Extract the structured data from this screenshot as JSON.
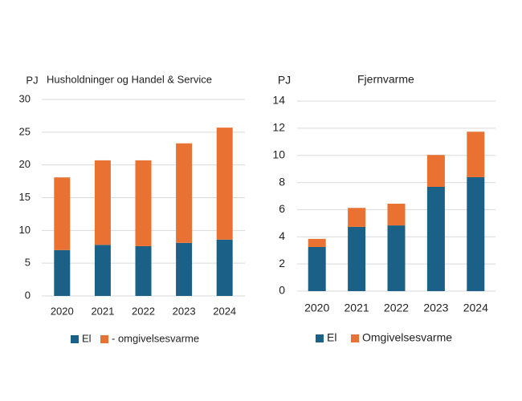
{
  "chart_data": [
    {
      "type": "bar",
      "stacked": true,
      "title": "Husholdninger og Handel & Service",
      "y_label": "PJ",
      "categories": [
        "2020",
        "2021",
        "2022",
        "2023",
        "2024"
      ],
      "series": [
        {
          "name": "El",
          "color": "#1b6087",
          "values": [
            7.0,
            7.8,
            7.6,
            8.1,
            8.6
          ]
        },
        {
          "name": "- omgivelsesvarme",
          "color": "#e97132",
          "values": [
            11.1,
            12.9,
            13.1,
            15.2,
            17.1
          ]
        }
      ],
      "ylim": [
        0,
        30
      ],
      "yticks": [
        0,
        5,
        10,
        15,
        20,
        25,
        30
      ],
      "grid": true,
      "legend": "bottom"
    },
    {
      "type": "bar",
      "stacked": true,
      "title": "Fjernvarme",
      "y_label": "PJ",
      "categories": [
        "2020",
        "2021",
        "2022",
        "2023",
        "2024"
      ],
      "series": [
        {
          "name": "El",
          "color": "#1b6087",
          "values": [
            3.25,
            4.73,
            4.84,
            7.68,
            8.39
          ]
        },
        {
          "name": "Omgivelsesvarme",
          "color": "#e97132",
          "values": [
            0.6,
            1.4,
            1.6,
            2.35,
            3.35
          ]
        }
      ],
      "ylim": [
        0,
        14
      ],
      "yticks": [
        0,
        2,
        4,
        6,
        8,
        10,
        12,
        14
      ],
      "grid": true,
      "legend": "bottom"
    }
  ]
}
